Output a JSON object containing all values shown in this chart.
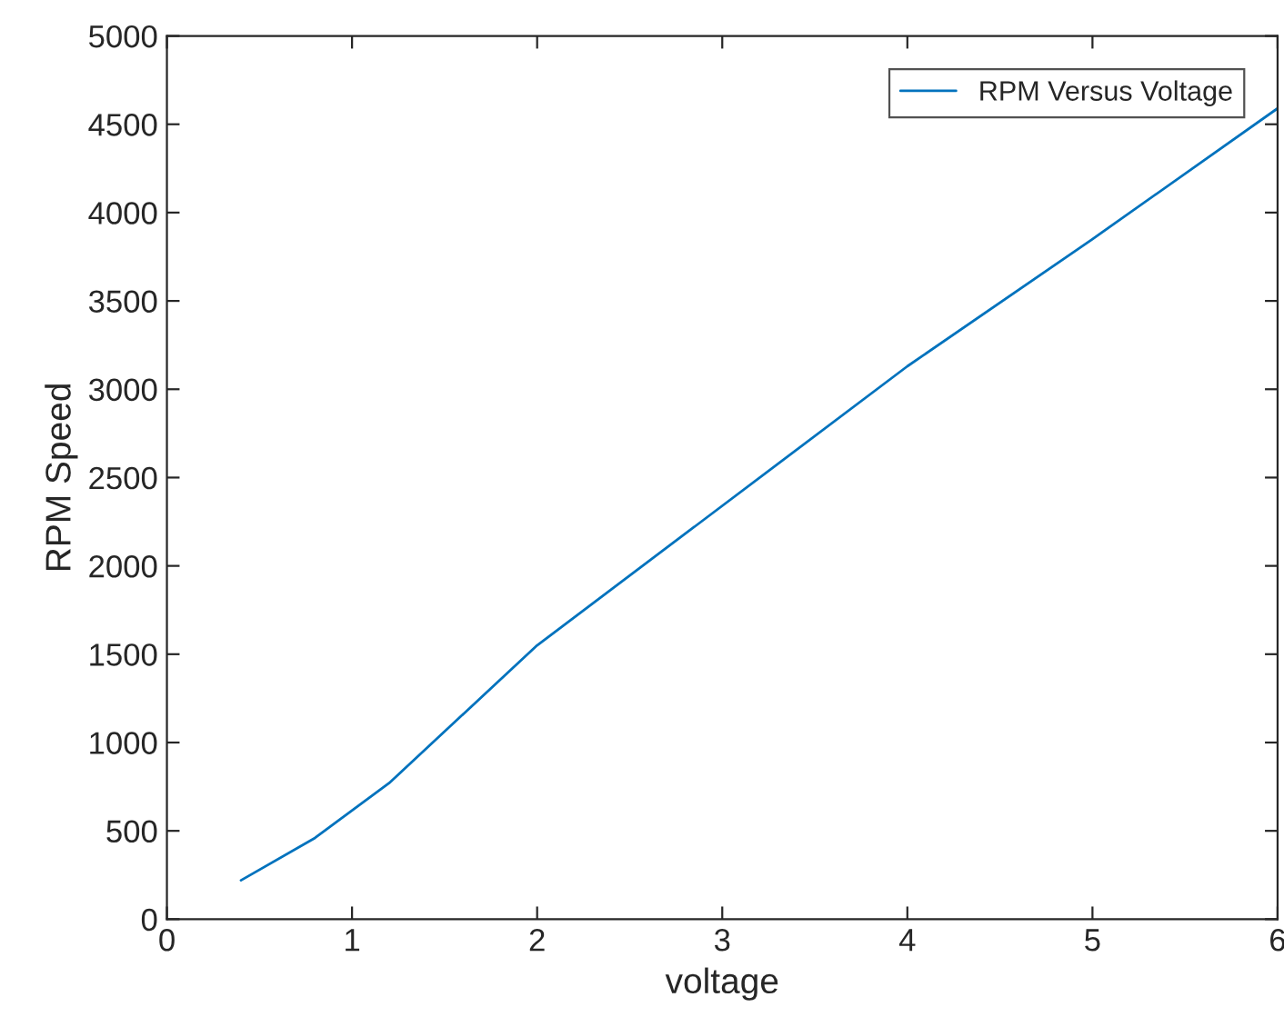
{
  "chart_data": {
    "type": "line",
    "xlabel": "voltage",
    "ylabel": "RPM Speed",
    "x": [
      0.4,
      0.8,
      1.2,
      2,
      4,
      5,
      6
    ],
    "series": [
      {
        "name": "RPM Versus Voltage",
        "color": "#0072bd",
        "values": [
          220,
          460,
          770,
          1550,
          3130,
          3850,
          4590
        ]
      }
    ],
    "xlim": [
      0,
      6
    ],
    "xticks": [
      0,
      1,
      2,
      3,
      4,
      5,
      6
    ],
    "ylim": [
      0,
      5000
    ],
    "yticks": [
      0,
      500,
      1000,
      1500,
      2000,
      2500,
      3000,
      3500,
      4000,
      4500,
      5000
    ],
    "grid": false,
    "legend": "top right",
    "marker": "none",
    "line_style": "solid"
  }
}
